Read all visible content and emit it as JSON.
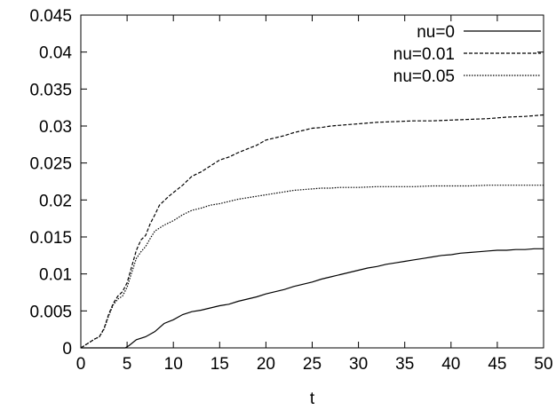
{
  "chart_data": {
    "type": "line",
    "title": "",
    "xlabel": "t",
    "ylabel": "",
    "xlim": [
      0,
      50
    ],
    "ylim": [
      0,
      0.045
    ],
    "x_ticks": [
      "0",
      "5",
      "10",
      "15",
      "20",
      "25",
      "30",
      "35",
      "40",
      "45",
      "50"
    ],
    "y_ticks": [
      "0",
      "0.005",
      "0.01",
      "0.015",
      "0.02",
      "0.025",
      "0.03",
      "0.035",
      "0.04",
      "0.045"
    ],
    "grid": false,
    "legend_position": "top-right",
    "series": [
      {
        "name": "nu=0",
        "style": "solid",
        "x": [
          0,
          4.8,
          5.2,
          6,
          7,
          8,
          9,
          10,
          11,
          12,
          13,
          14,
          15,
          16,
          17,
          18,
          19,
          20,
          21,
          22,
          23,
          24,
          25,
          26,
          27,
          28,
          29,
          30,
          31,
          32,
          33,
          34,
          35,
          36,
          37,
          38,
          39,
          40,
          41,
          42,
          43,
          44,
          45,
          46,
          47,
          48,
          49,
          50
        ],
        "y": [
          0,
          0,
          0.0003,
          0.0011,
          0.0015,
          0.0022,
          0.0033,
          0.0038,
          0.0045,
          0.0049,
          0.0051,
          0.0054,
          0.0057,
          0.0059,
          0.0063,
          0.0066,
          0.0069,
          0.0073,
          0.0076,
          0.0079,
          0.0083,
          0.0086,
          0.0089,
          0.0093,
          0.0096,
          0.0099,
          0.0102,
          0.0105,
          0.0108,
          0.011,
          0.0113,
          0.0115,
          0.0117,
          0.0119,
          0.0121,
          0.0123,
          0.0125,
          0.0126,
          0.0128,
          0.0129,
          0.013,
          0.0131,
          0.0132,
          0.0132,
          0.0133,
          0.0133,
          0.0134,
          0.0134
        ]
      },
      {
        "name": "nu=0.01",
        "style": "dashed",
        "x": [
          0,
          0.5,
          1,
          1.5,
          2,
          2.5,
          3,
          3.5,
          4,
          4.5,
          5,
          5.5,
          6,
          6.5,
          7,
          7.5,
          8,
          8.5,
          9,
          9.5,
          10,
          11,
          12,
          13,
          14,
          15,
          16,
          17,
          18,
          19,
          20,
          21,
          22,
          23,
          24,
          25,
          26,
          27,
          28,
          29,
          30,
          32,
          34,
          36,
          38,
          40,
          42,
          44,
          46,
          48,
          50
        ],
        "y": [
          0,
          0.0004,
          0.0008,
          0.0012,
          0.0015,
          0.0026,
          0.0045,
          0.006,
          0.007,
          0.0076,
          0.0088,
          0.011,
          0.0132,
          0.0146,
          0.0152,
          0.0168,
          0.018,
          0.0193,
          0.0199,
          0.0205,
          0.021,
          0.022,
          0.0232,
          0.0238,
          0.0246,
          0.0254,
          0.0258,
          0.0264,
          0.0269,
          0.0274,
          0.0281,
          0.0284,
          0.0287,
          0.0291,
          0.0294,
          0.0297,
          0.0298,
          0.03,
          0.0301,
          0.0302,
          0.0303,
          0.0305,
          0.0306,
          0.0307,
          0.0307,
          0.0308,
          0.0309,
          0.031,
          0.0312,
          0.0313,
          0.0315
        ]
      },
      {
        "name": "nu=0.05",
        "style": "dotted",
        "x": [
          0,
          0.5,
          1,
          1.5,
          2,
          2.5,
          3,
          3.5,
          4,
          4.5,
          5,
          5.5,
          6,
          6.5,
          7,
          7.5,
          8,
          8.5,
          9,
          9.5,
          10,
          11,
          12,
          13,
          14,
          15,
          16,
          17,
          18,
          19,
          20,
          21,
          22,
          23,
          24,
          25,
          26,
          27,
          28,
          30,
          32,
          34,
          36,
          38,
          40,
          42,
          44,
          46,
          48,
          50
        ],
        "y": [
          0,
          0.0004,
          0.0008,
          0.0012,
          0.0015,
          0.0025,
          0.0043,
          0.0058,
          0.0066,
          0.007,
          0.0082,
          0.0102,
          0.0121,
          0.013,
          0.0137,
          0.0148,
          0.0158,
          0.0162,
          0.0166,
          0.0169,
          0.0172,
          0.018,
          0.0186,
          0.0189,
          0.0193,
          0.0195,
          0.0198,
          0.0201,
          0.0203,
          0.0205,
          0.0207,
          0.0209,
          0.0211,
          0.0213,
          0.0214,
          0.0215,
          0.0216,
          0.0216,
          0.0217,
          0.0217,
          0.0218,
          0.0218,
          0.0218,
          0.0219,
          0.0219,
          0.0219,
          0.022,
          0.022,
          0.022,
          0.022
        ]
      }
    ]
  }
}
